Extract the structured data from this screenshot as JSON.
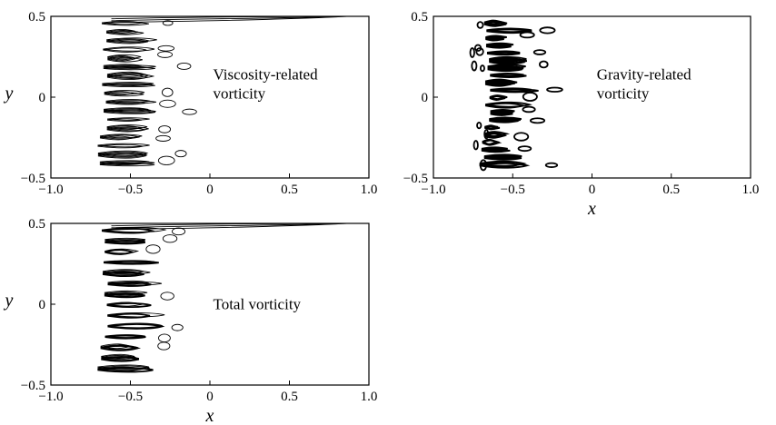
{
  "chart_data": [
    {
      "type": "contour",
      "panel": "viscosity",
      "xlim": [
        -1.0,
        1.0
      ],
      "ylim": [
        -0.5,
        0.5
      ],
      "xticks": [
        "−1.0",
        "−0.5",
        "0",
        "0.5",
        "1.0"
      ],
      "yticks": [
        "0.5",
        "0",
        "−0.5"
      ],
      "xlabel": "",
      "ylabel": "y",
      "annotation": [
        "Viscosity-related",
        "vorticity"
      ],
      "grid": false
    },
    {
      "type": "contour",
      "panel": "gravity",
      "xlim": [
        -1.0,
        1.0
      ],
      "ylim": [
        -0.5,
        0.5
      ],
      "xticks": [
        "−1.0",
        "−0.5",
        "0",
        "0.5",
        "1.0"
      ],
      "yticks": [
        "0.5",
        "0",
        "−0.5"
      ],
      "xlabel": "x",
      "ylabel": "",
      "annotation": [
        "Gravity-related",
        "vorticity"
      ],
      "grid": false
    },
    {
      "type": "contour",
      "panel": "total",
      "xlim": [
        -1.0,
        1.0
      ],
      "ylim": [
        -0.5,
        0.5
      ],
      "xticks": [
        "−1.0",
        "−0.5",
        "0",
        "0.5",
        "1.0"
      ],
      "yticks": [
        "0.5",
        "0",
        "−0.5"
      ],
      "xlabel": "x",
      "ylabel": "y",
      "annotation": [
        "Total vorticity"
      ],
      "grid": false
    }
  ]
}
